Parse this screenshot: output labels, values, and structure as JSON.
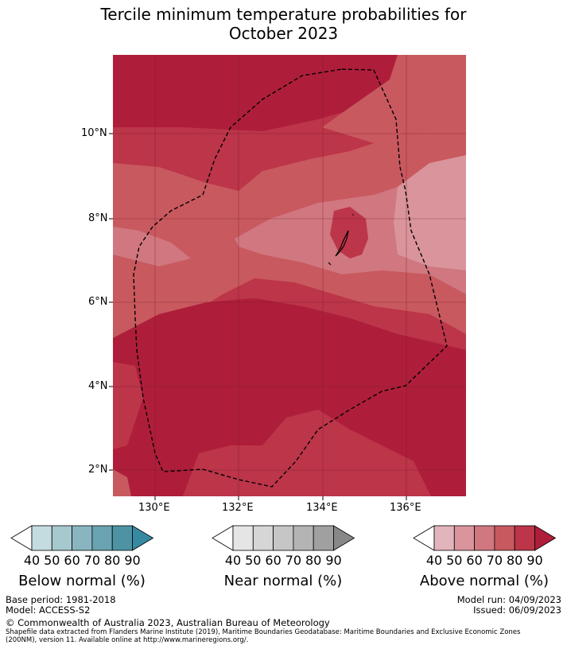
{
  "title_line1": "Tercile minimum temperature probabilities for",
  "title_line2": "October 2023",
  "y_ticks": [
    "10°N",
    "8°N",
    "6°N",
    "4°N",
    "2°N"
  ],
  "x_ticks": [
    "130°E",
    "132°E",
    "134°E",
    "136°E"
  ],
  "colorbars": [
    {
      "label": "Below normal (%)",
      "ticks": [
        "40",
        "50",
        "60",
        "70",
        "80",
        "90"
      ],
      "colors": [
        "#c4dbe0",
        "#a6c8cf",
        "#88b5c0",
        "#6aa3b1",
        "#4d93a3",
        "#3589a0"
      ]
    },
    {
      "label": "Near normal (%)",
      "ticks": [
        "40",
        "50",
        "60",
        "70",
        "80",
        "90"
      ],
      "colors": [
        "#e5e5e5",
        "#d6d6d6",
        "#c6c6c6",
        "#b4b4b4",
        "#a0a0a0",
        "#888888"
      ]
    },
    {
      "label": "Above normal (%)",
      "ticks": [
        "40",
        "50",
        "60",
        "70",
        "80",
        "90"
      ],
      "colors": [
        "#e2b4bb",
        "#d9949c",
        "#d0777f",
        "#c8595f",
        "#bc3549",
        "#ae1e3a"
      ]
    }
  ],
  "footer": {
    "base_period": "Base period: 1981-2018",
    "model": "Model: ACCESS-S2",
    "model_run": "Model run: 04/09/2023",
    "issued": "Issued: 06/09/2023",
    "copyright": "© Commonwealth of Australia 2023, Australian Bureau of Meteorology",
    "shapefile_line1": "Shapefile data extracted from Flanders Marine Institute (2019), Maritime Boundaries Geodatabase: Maritime Boundaries and Exclusive Economic Zones",
    "shapefile_line2": "(200NM), version 11. Available online at http://www.marineregions.org/."
  }
}
